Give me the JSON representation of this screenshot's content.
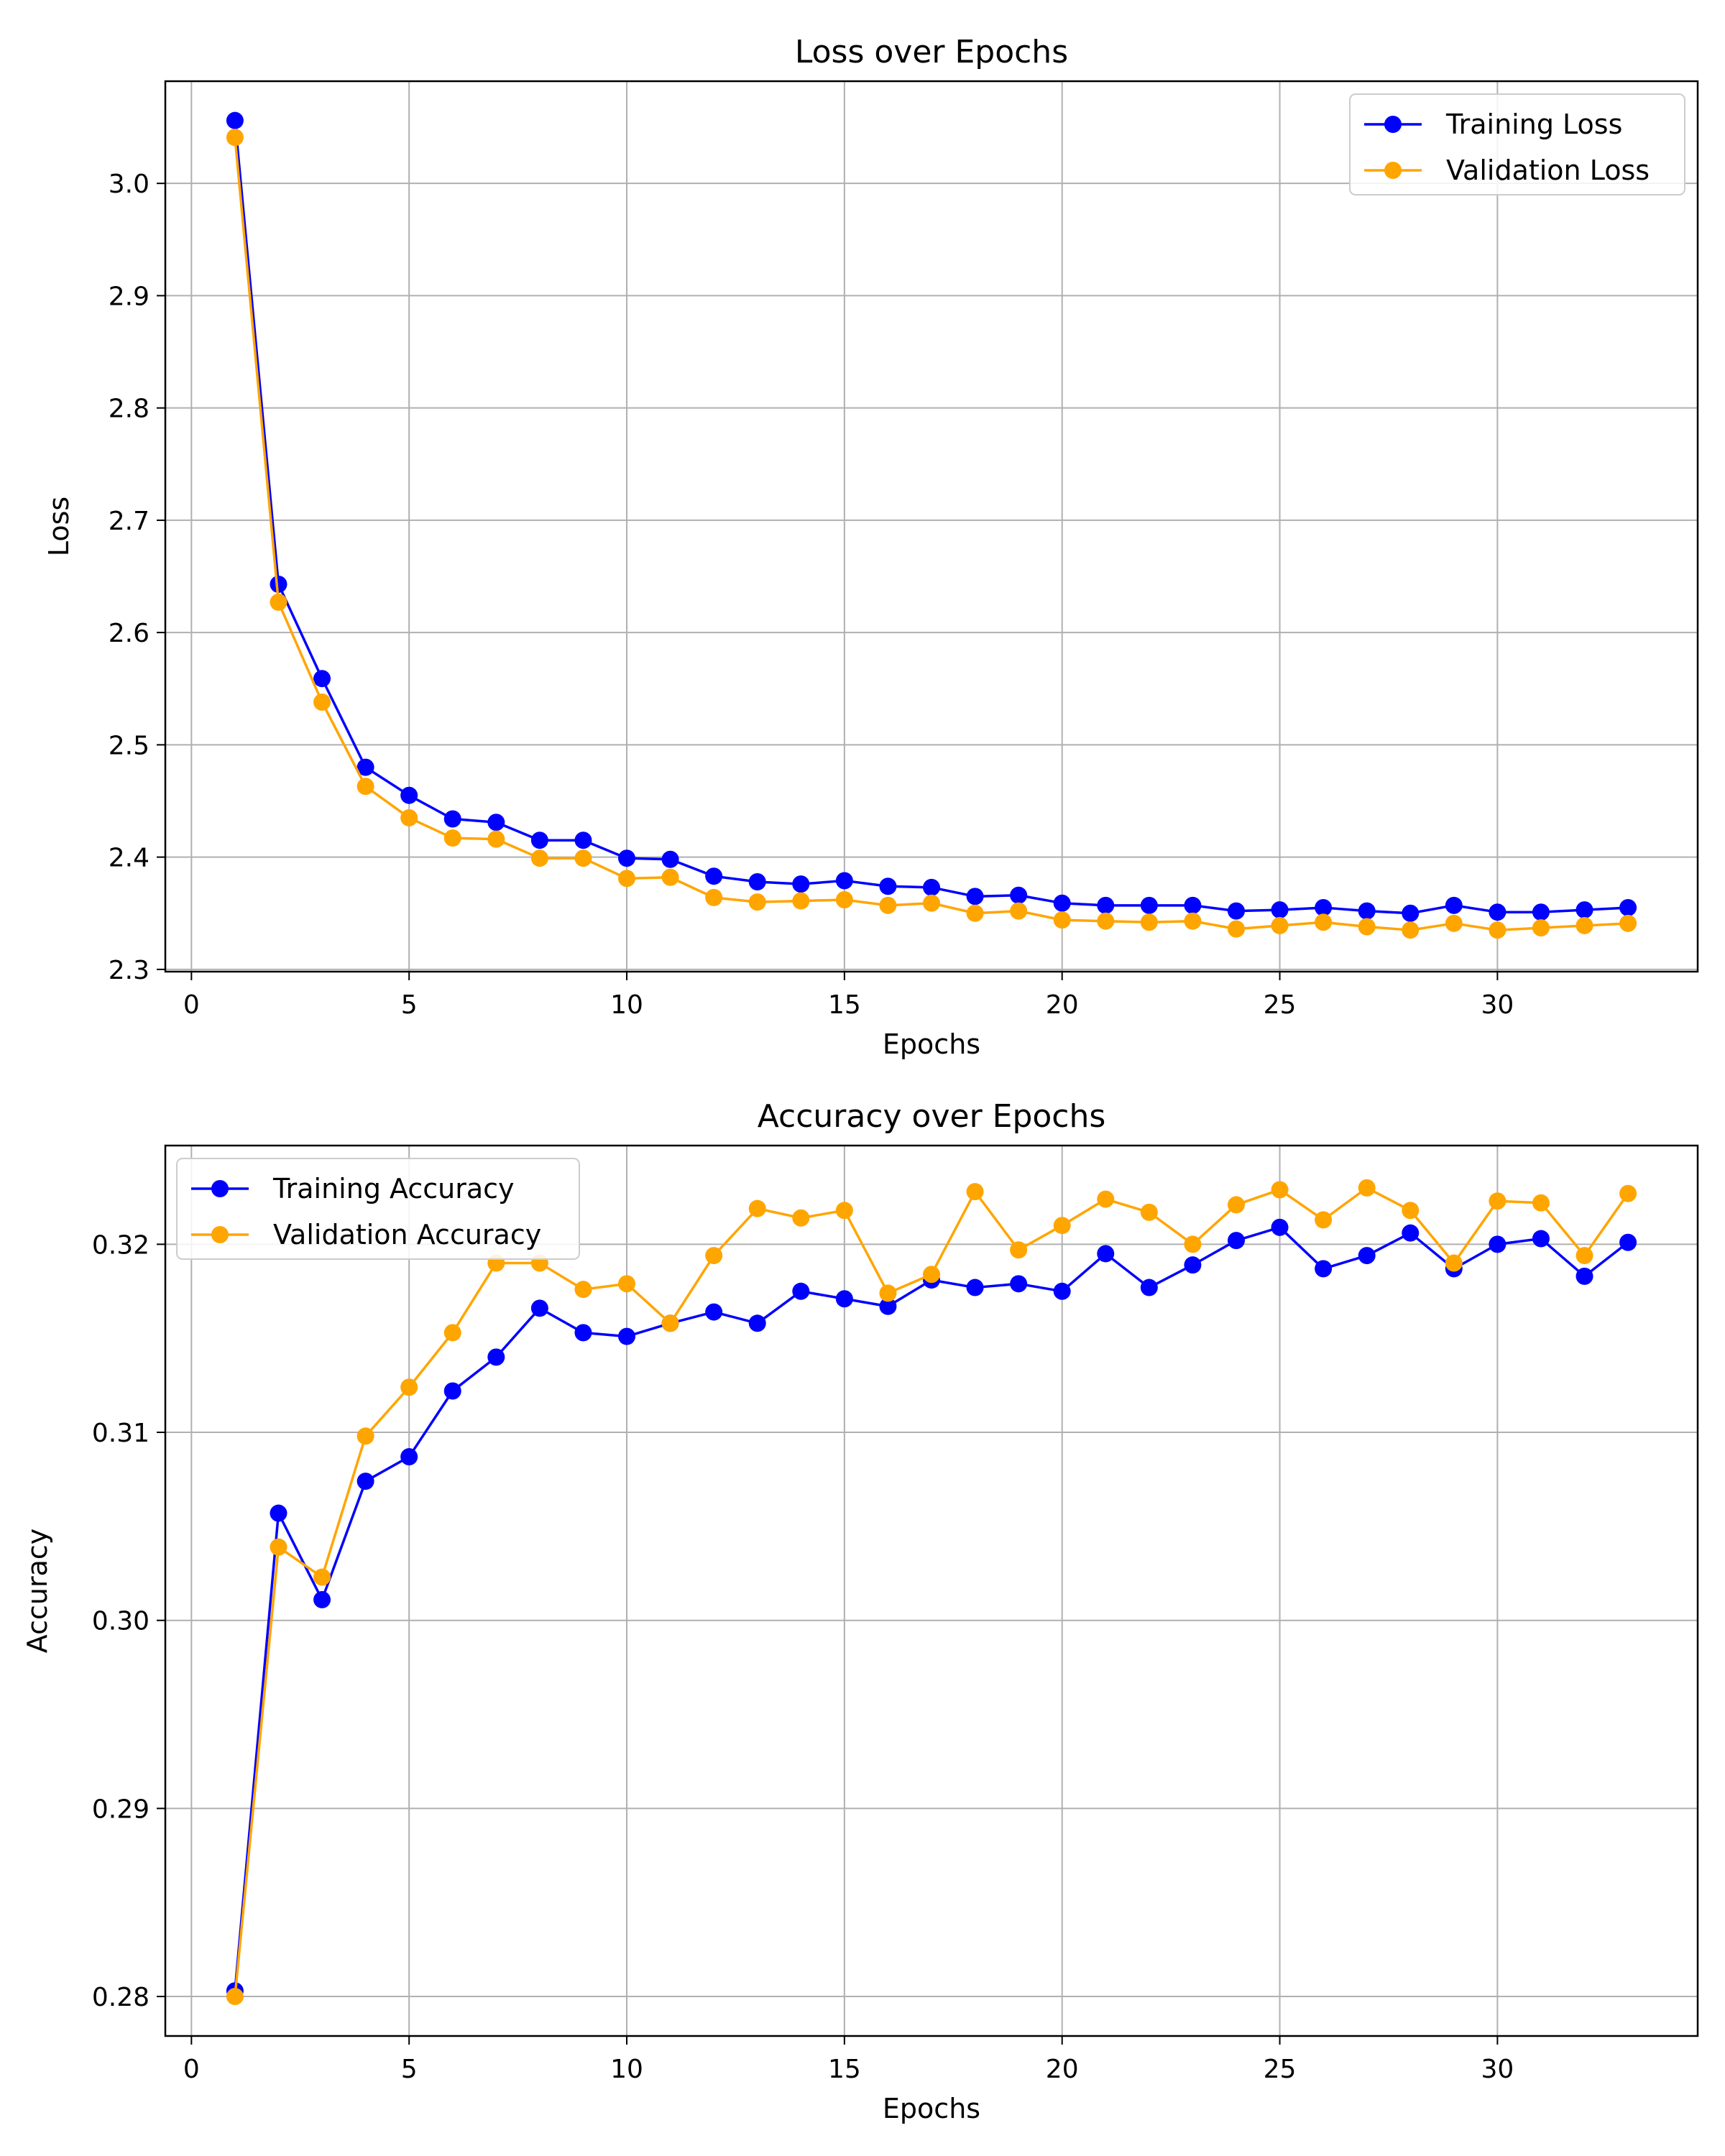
{
  "chart_data": [
    {
      "type": "line",
      "title": "Loss over Epochs",
      "xlabel": "Epochs",
      "ylabel": "Loss",
      "grid": true,
      "legend_position": "top-right",
      "xlim": [
        -0.6,
        34.6
      ],
      "ylim": [
        2.298,
        3.091
      ],
      "x_ticks": [
        0,
        5,
        10,
        15,
        20,
        25,
        30
      ],
      "x_tick_labels": [
        "0",
        "5",
        "10",
        "15",
        "20",
        "25",
        "30"
      ],
      "y_ticks": [
        2.3,
        2.4,
        2.5,
        2.6,
        2.7,
        2.8,
        2.9,
        3.0
      ],
      "y_tick_labels": [
        "2.3",
        "2.4",
        "2.5",
        "2.6",
        "2.7",
        "2.8",
        "2.9",
        "3.0"
      ],
      "x": [
        1,
        2,
        3,
        4,
        5,
        6,
        7,
        8,
        9,
        10,
        11,
        12,
        13,
        14,
        15,
        16,
        17,
        18,
        19,
        20,
        21,
        22,
        23,
        24,
        25,
        26,
        27,
        28,
        29,
        30,
        31,
        32,
        33
      ],
      "series": [
        {
          "name": "Training Loss",
          "color": "#0000ff",
          "values": [
            3.056,
            2.643,
            2.559,
            2.48,
            2.455,
            2.434,
            2.431,
            2.415,
            2.415,
            2.399,
            2.398,
            2.383,
            2.378,
            2.376,
            2.379,
            2.374,
            2.373,
            2.365,
            2.366,
            2.359,
            2.357,
            2.357,
            2.357,
            2.352,
            2.353,
            2.355,
            2.352,
            2.35,
            2.357,
            2.351,
            2.351,
            2.353,
            2.355
          ]
        },
        {
          "name": "Validation Loss",
          "color": "#ffa500",
          "values": [
            3.041,
            2.627,
            2.538,
            2.463,
            2.435,
            2.417,
            2.416,
            2.399,
            2.399,
            2.381,
            2.382,
            2.364,
            2.36,
            2.361,
            2.362,
            2.357,
            2.359,
            2.35,
            2.352,
            2.344,
            2.343,
            2.342,
            2.343,
            2.336,
            2.339,
            2.342,
            2.338,
            2.335,
            2.341,
            2.335,
            2.337,
            2.339,
            2.341
          ]
        }
      ]
    },
    {
      "type": "line",
      "title": "Accuracy over Epochs",
      "xlabel": "Epochs",
      "ylabel": "Accuracy",
      "grid": true,
      "legend_position": "top-left",
      "xlim": [
        -0.6,
        34.6
      ],
      "ylim": [
        0.2779,
        0.32525
      ],
      "x_ticks": [
        0,
        5,
        10,
        15,
        20,
        25,
        30
      ],
      "x_tick_labels": [
        "0",
        "5",
        "10",
        "15",
        "20",
        "25",
        "30"
      ],
      "y_ticks": [
        0.28,
        0.29,
        0.3,
        0.31,
        0.32
      ],
      "y_tick_labels": [
        "0.28",
        "0.29",
        "0.30",
        "0.31",
        "0.32"
      ],
      "x": [
        1,
        2,
        3,
        4,
        5,
        6,
        7,
        8,
        9,
        10,
        11,
        12,
        13,
        14,
        15,
        16,
        17,
        18,
        19,
        20,
        21,
        22,
        23,
        24,
        25,
        26,
        27,
        28,
        29,
        30,
        31,
        32,
        33
      ],
      "series": [
        {
          "name": "Training Accuracy",
          "color": "#0000ff",
          "values": [
            0.2803,
            0.3057,
            0.3011,
            0.3074,
            0.3087,
            0.3122,
            0.314,
            0.3166,
            0.3153,
            0.3151,
            0.3158,
            0.3164,
            0.3158,
            0.3175,
            0.3171,
            0.3167,
            0.3181,
            0.3177,
            0.3179,
            0.3175,
            0.3195,
            0.3177,
            0.3189,
            0.3202,
            0.3209,
            0.3187,
            0.3194,
            0.3206,
            0.3187,
            0.32,
            0.3203,
            0.3183,
            0.3201
          ]
        },
        {
          "name": "Validation Accuracy",
          "color": "#ffa500",
          "values": [
            0.28,
            0.3039,
            0.3023,
            0.3098,
            0.3124,
            0.3153,
            0.319,
            0.319,
            0.3176,
            0.3179,
            0.3158,
            0.3194,
            0.3219,
            0.3214,
            0.3218,
            0.3174,
            0.3184,
            0.3228,
            0.3197,
            0.321,
            0.3224,
            0.3217,
            0.32,
            0.3221,
            0.3229,
            0.3213,
            0.323,
            0.3218,
            0.319,
            0.3223,
            0.3222,
            0.3194,
            0.3227
          ]
        }
      ]
    }
  ]
}
